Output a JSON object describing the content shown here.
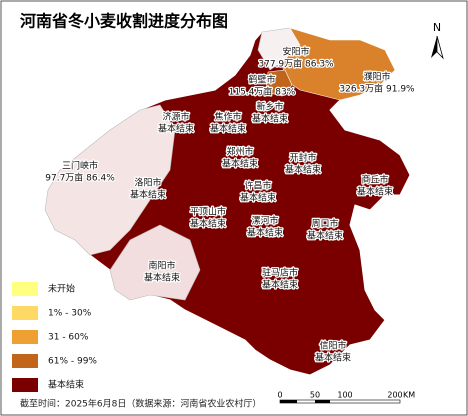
{
  "header": {
    "title": "河南省冬小麦收割进度分布图",
    "north": "N"
  },
  "cities": [
    {
      "name": "安阳市",
      "status": "377.9万亩 86.3%"
    },
    {
      "name": "濮阳市",
      "status": "326.3万亩 91.9%"
    },
    {
      "name": "鹤壁市",
      "status": "115.4万亩 83%"
    },
    {
      "name": "新乡市",
      "status": "基本结束"
    },
    {
      "name": "济源市",
      "status": "基本结束"
    },
    {
      "name": "焦作市",
      "status": "基本结束"
    },
    {
      "name": "郑州市",
      "status": "基本结束"
    },
    {
      "name": "开封市",
      "status": "基本结束"
    },
    {
      "name": "商丘市",
      "status": "基本结束"
    },
    {
      "name": "三门峡市",
      "status": "97.7万亩 86.4%"
    },
    {
      "name": "洛阳市",
      "status": "基本结束"
    },
    {
      "name": "许昌市",
      "status": "基本结束"
    },
    {
      "name": "平顶山市",
      "status": "基本结束"
    },
    {
      "name": "漯河市",
      "status": "基本结束"
    },
    {
      "name": "周口市",
      "status": "基本结束"
    },
    {
      "name": "南阳市",
      "status": "基本结束"
    },
    {
      "name": "驻马店市",
      "status": "基本结束"
    },
    {
      "name": "信阳市",
      "status": "基本结束"
    }
  ],
  "legend": [
    {
      "label": "未开始",
      "color": "#ffff80"
    },
    {
      "label": "1% - 30%",
      "color": "#ffd966"
    },
    {
      "label": "31 - 60%",
      "color": "#eea032"
    },
    {
      "label": "61% - 99%",
      "color": "#c0651a"
    },
    {
      "label": "基本结束",
      "color": "#7a0000"
    }
  ],
  "scale": {
    "ticks": [
      "0",
      "50",
      "100",
      "200"
    ],
    "unit": "KM"
  },
  "footer": "截至时间：2025年6月8日（数据来源：河南省农业农村厅）"
}
